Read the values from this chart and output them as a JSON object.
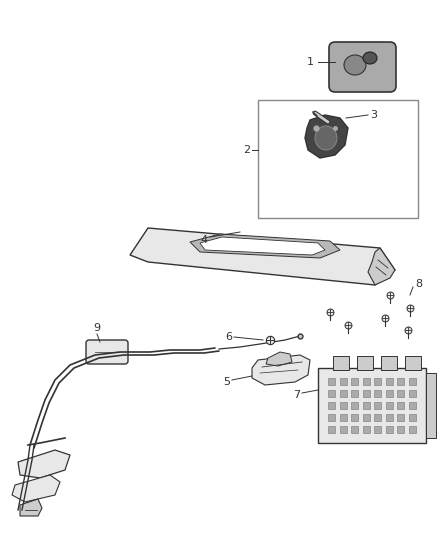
{
  "bg_color": "#ffffff",
  "line_color": "#333333",
  "label_color": "#333333",
  "fig_width": 4.38,
  "fig_height": 5.33,
  "dpi": 100
}
